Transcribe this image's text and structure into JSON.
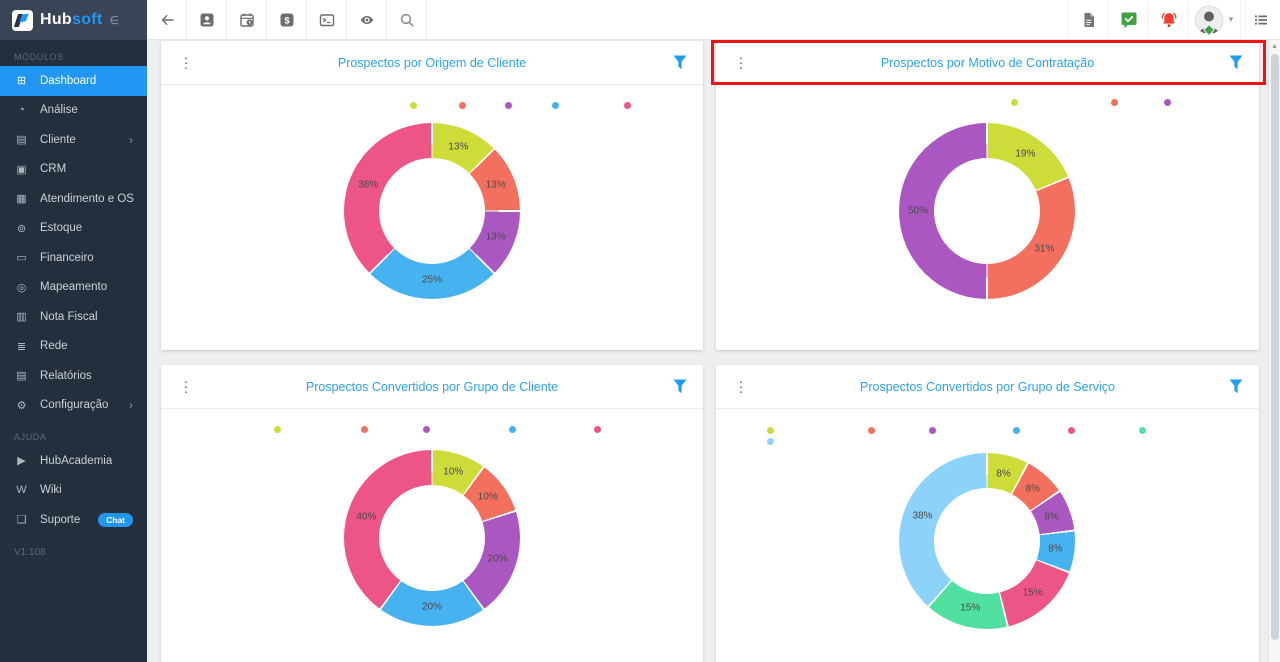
{
  "logo": {
    "brand_primary": "Hub",
    "brand_accent": "soft"
  },
  "sidebar": {
    "sections": [
      {
        "label": "MÓDULOS",
        "items": [
          {
            "icon": "dashboard-icon",
            "label": "Dashboard",
            "active": true
          },
          {
            "icon": "analysis-icon",
            "label": "Análise"
          },
          {
            "icon": "client-icon",
            "label": "Cliente",
            "chevron": true
          },
          {
            "icon": "crm-icon",
            "label": "CRM"
          },
          {
            "icon": "service-order-icon",
            "label": "Atendimento e OS"
          },
          {
            "icon": "stock-icon",
            "label": "Estoque"
          },
          {
            "icon": "finance-icon",
            "label": "Financeiro"
          },
          {
            "icon": "mapping-icon",
            "label": "Mapeamento"
          },
          {
            "icon": "invoice-icon",
            "label": "Nota Fiscal"
          },
          {
            "icon": "network-icon",
            "label": "Rede"
          },
          {
            "icon": "reports-icon",
            "label": "Relatórios"
          },
          {
            "icon": "settings-icon",
            "label": "Configuração",
            "chevron": true
          }
        ]
      },
      {
        "label": "AJUDA",
        "items": [
          {
            "icon": "hubacademia-icon",
            "label": "HubAcademia"
          },
          {
            "icon": "wiki-icon",
            "label": "Wiki"
          },
          {
            "icon": "support-icon",
            "label": "Suporte",
            "badge": "Chat"
          }
        ]
      }
    ],
    "version": "V1.108"
  },
  "toolbar": {
    "left_icons": [
      "back-arrow-icon",
      "contacts-icon",
      "schedule-icon",
      "billing-icon",
      "terminal-icon",
      "visibility-icon",
      "search-icon"
    ],
    "right_icons": [
      "pdf-export-icon",
      "chat-approved-icon",
      "notifications-icon",
      "user-avatar",
      "menu-list-icon"
    ]
  },
  "annotation": {
    "type": "highlight-box",
    "color": "#ee1212",
    "target": "Prospectos por Motivo de Contratação"
  },
  "chart_data": [
    {
      "type": "pie",
      "subtype": "donut",
      "title": "Prospectos por Origem de Cliente",
      "legend_position": "top",
      "slices": [
        {
          "percent": 12.5,
          "label": "13%",
          "color": "#cddc39"
        },
        {
          "percent": 12.5,
          "label": "13%",
          "color": "#f4705e"
        },
        {
          "percent": 12.5,
          "label": "13%",
          "color": "#ab57c2"
        },
        {
          "percent": 25,
          "label": "25%",
          "color": "#47b2f0"
        },
        {
          "percent": 37.5,
          "label": "38%",
          "color": "#ec5585"
        }
      ],
      "legend_dots": [
        [
          249,
          61
        ],
        [
          298,
          61
        ],
        [
          344,
          61
        ],
        [
          391,
          61
        ],
        [
          463,
          61
        ]
      ]
    },
    {
      "type": "pie",
      "subtype": "donut",
      "title": "Prospectos por Motivo de Contratação",
      "legend_position": "top",
      "highlighted": true,
      "slices": [
        {
          "percent": 18.75,
          "label": "19%",
          "color": "#cddc39"
        },
        {
          "percent": 31.25,
          "label": "31%",
          "color": "#f4705e"
        },
        {
          "percent": 50,
          "label": "50%",
          "color": "#ab57c2"
        }
      ],
      "legend_dots": [
        [
          295,
          58
        ],
        [
          395,
          58
        ],
        [
          448,
          58
        ]
      ]
    },
    {
      "type": "pie",
      "subtype": "donut",
      "title": "Prospectos Convertidos por Grupo de Cliente",
      "legend_position": "top",
      "slices": [
        {
          "percent": 10,
          "label": "10%",
          "color": "#cddc39"
        },
        {
          "percent": 10,
          "label": "10%",
          "color": "#f4705e"
        },
        {
          "percent": 20,
          "label": "20%",
          "color": "#ab57c2"
        },
        {
          "percent": 20,
          "label": "20%",
          "color": "#47b2f0"
        },
        {
          "percent": 40,
          "label": "40%",
          "color": "#ec5585"
        }
      ],
      "legend_dots": [
        [
          113,
          61
        ],
        [
          200,
          61
        ],
        [
          262,
          61
        ],
        [
          348,
          61
        ],
        [
          433,
          61
        ]
      ]
    },
    {
      "type": "pie",
      "subtype": "donut",
      "title": "Prospectos Convertidos por Grupo de Serviço",
      "legend_position": "top",
      "slices": [
        {
          "percent": 7.7,
          "label": "8%",
          "color": "#cddc39"
        },
        {
          "percent": 7.7,
          "label": "8%",
          "color": "#f4705e"
        },
        {
          "percent": 7.7,
          "label": "8%",
          "color": "#ab57c2"
        },
        {
          "percent": 7.7,
          "label": "8%",
          "color": "#47b2f0"
        },
        {
          "percent": 15.4,
          "label": "15%",
          "color": "#ec5585"
        },
        {
          "percent": 15.4,
          "label": "15%",
          "color": "#50e0a2"
        },
        {
          "percent": 38.4,
          "label": "38%",
          "color": "#8dd2f8"
        }
      ],
      "legend_dots": [
        [
          51,
          62
        ],
        [
          152,
          62
        ],
        [
          213,
          62
        ],
        [
          297,
          62
        ],
        [
          352,
          62
        ],
        [
          423,
          62
        ],
        [
          51,
          73
        ]
      ]
    }
  ]
}
